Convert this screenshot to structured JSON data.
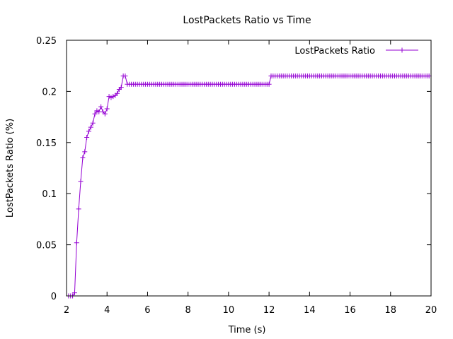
{
  "chart_data": {
    "type": "line",
    "title": "LostPackets Ratio vs Time",
    "xlabel": "Time (s)",
    "ylabel": "LostPackets Ratio (%)",
    "xlim": [
      2,
      20
    ],
    "ylim": [
      0,
      0.25
    ],
    "x_ticks": [
      "2",
      "4",
      "6",
      "8",
      "10",
      "12",
      "14",
      "16",
      "18",
      "20"
    ],
    "y_ticks": [
      "0",
      "0.05",
      "0.1",
      "0.15",
      "0.2",
      "0.25"
    ],
    "grid": false,
    "legend_position": "top-right",
    "colors": {
      "series": "#9400d3",
      "axis": "#000000"
    },
    "series": [
      {
        "name": "LostPackets Ratio",
        "points": [
          [
            2.1,
            0.0
          ],
          [
            2.2,
            0.0
          ],
          [
            2.3,
            0.0
          ],
          [
            2.4,
            0.003
          ],
          [
            2.5,
            0.052
          ],
          [
            2.6,
            0.085
          ],
          [
            2.7,
            0.112
          ],
          [
            2.8,
            0.135
          ],
          [
            2.9,
            0.141
          ],
          [
            3.0,
            0.155
          ],
          [
            3.1,
            0.161
          ],
          [
            3.2,
            0.165
          ],
          [
            3.3,
            0.169
          ],
          [
            3.4,
            0.178
          ],
          [
            3.5,
            0.181
          ],
          [
            3.6,
            0.18
          ],
          [
            3.7,
            0.185
          ],
          [
            3.8,
            0.18
          ],
          [
            3.9,
            0.178
          ],
          [
            4.0,
            0.183
          ],
          [
            4.1,
            0.195
          ],
          [
            4.2,
            0.194
          ],
          [
            4.3,
            0.195
          ],
          [
            4.4,
            0.196
          ],
          [
            4.5,
            0.198
          ],
          [
            4.6,
            0.202
          ],
          [
            4.7,
            0.204
          ],
          [
            4.8,
            0.215
          ],
          [
            4.9,
            0.215
          ],
          [
            5.0,
            0.207
          ],
          [
            5.1,
            0.207
          ],
          [
            5.2,
            0.207
          ],
          [
            5.3,
            0.207
          ],
          [
            5.4,
            0.207
          ],
          [
            5.5,
            0.207
          ],
          [
            5.6,
            0.207
          ],
          [
            5.7,
            0.207
          ],
          [
            5.8,
            0.207
          ],
          [
            5.9,
            0.207
          ],
          [
            6.0,
            0.207
          ],
          [
            6.1,
            0.207
          ],
          [
            6.2,
            0.207
          ],
          [
            6.3,
            0.207
          ],
          [
            6.4,
            0.207
          ],
          [
            6.5,
            0.207
          ],
          [
            6.6,
            0.207
          ],
          [
            6.7,
            0.207
          ],
          [
            6.8,
            0.207
          ],
          [
            6.9,
            0.207
          ],
          [
            7.0,
            0.207
          ],
          [
            7.1,
            0.207
          ],
          [
            7.2,
            0.207
          ],
          [
            7.3,
            0.207
          ],
          [
            7.4,
            0.207
          ],
          [
            7.5,
            0.207
          ],
          [
            7.6,
            0.207
          ],
          [
            7.7,
            0.207
          ],
          [
            7.8,
            0.207
          ],
          [
            7.9,
            0.207
          ],
          [
            8.0,
            0.207
          ],
          [
            8.1,
            0.207
          ],
          [
            8.2,
            0.207
          ],
          [
            8.3,
            0.207
          ],
          [
            8.4,
            0.207
          ],
          [
            8.5,
            0.207
          ],
          [
            8.6,
            0.207
          ],
          [
            8.7,
            0.207
          ],
          [
            8.8,
            0.207
          ],
          [
            8.9,
            0.207
          ],
          [
            9.0,
            0.207
          ],
          [
            9.1,
            0.207
          ],
          [
            9.2,
            0.207
          ],
          [
            9.3,
            0.207
          ],
          [
            9.4,
            0.207
          ],
          [
            9.5,
            0.207
          ],
          [
            9.6,
            0.207
          ],
          [
            9.7,
            0.207
          ],
          [
            9.8,
            0.207
          ],
          [
            9.9,
            0.207
          ],
          [
            10.0,
            0.207
          ],
          [
            10.1,
            0.207
          ],
          [
            10.2,
            0.207
          ],
          [
            10.3,
            0.207
          ],
          [
            10.4,
            0.207
          ],
          [
            10.5,
            0.207
          ],
          [
            10.6,
            0.207
          ],
          [
            10.7,
            0.207
          ],
          [
            10.8,
            0.207
          ],
          [
            10.9,
            0.207
          ],
          [
            11.0,
            0.207
          ],
          [
            11.1,
            0.207
          ],
          [
            11.2,
            0.207
          ],
          [
            11.3,
            0.207
          ],
          [
            11.4,
            0.207
          ],
          [
            11.5,
            0.207
          ],
          [
            11.6,
            0.207
          ],
          [
            11.7,
            0.207
          ],
          [
            11.8,
            0.207
          ],
          [
            11.9,
            0.207
          ],
          [
            12.0,
            0.207
          ],
          [
            12.1,
            0.215
          ],
          [
            12.2,
            0.215
          ],
          [
            12.3,
            0.215
          ],
          [
            12.4,
            0.215
          ],
          [
            12.5,
            0.215
          ],
          [
            12.6,
            0.215
          ],
          [
            12.7,
            0.215
          ],
          [
            12.8,
            0.215
          ],
          [
            12.9,
            0.215
          ],
          [
            13.0,
            0.215
          ],
          [
            13.1,
            0.215
          ],
          [
            13.2,
            0.215
          ],
          [
            13.3,
            0.215
          ],
          [
            13.4,
            0.215
          ],
          [
            13.5,
            0.215
          ],
          [
            13.6,
            0.215
          ],
          [
            13.7,
            0.215
          ],
          [
            13.8,
            0.215
          ],
          [
            13.9,
            0.215
          ],
          [
            14.0,
            0.215
          ],
          [
            14.1,
            0.215
          ],
          [
            14.2,
            0.215
          ],
          [
            14.3,
            0.215
          ],
          [
            14.4,
            0.215
          ],
          [
            14.5,
            0.215
          ],
          [
            14.6,
            0.215
          ],
          [
            14.7,
            0.215
          ],
          [
            14.8,
            0.215
          ],
          [
            14.9,
            0.215
          ],
          [
            15.0,
            0.215
          ],
          [
            15.1,
            0.215
          ],
          [
            15.2,
            0.215
          ],
          [
            15.3,
            0.215
          ],
          [
            15.4,
            0.215
          ],
          [
            15.5,
            0.215
          ],
          [
            15.6,
            0.215
          ],
          [
            15.7,
            0.215
          ],
          [
            15.8,
            0.215
          ],
          [
            15.9,
            0.215
          ],
          [
            16.0,
            0.215
          ],
          [
            16.1,
            0.215
          ],
          [
            16.2,
            0.215
          ],
          [
            16.3,
            0.215
          ],
          [
            16.4,
            0.215
          ],
          [
            16.5,
            0.215
          ],
          [
            16.6,
            0.215
          ],
          [
            16.7,
            0.215
          ],
          [
            16.8,
            0.215
          ],
          [
            16.9,
            0.215
          ],
          [
            17.0,
            0.215
          ],
          [
            17.1,
            0.215
          ],
          [
            17.2,
            0.215
          ],
          [
            17.3,
            0.215
          ],
          [
            17.4,
            0.215
          ],
          [
            17.5,
            0.215
          ],
          [
            17.6,
            0.215
          ],
          [
            17.7,
            0.215
          ],
          [
            17.8,
            0.215
          ],
          [
            17.9,
            0.215
          ],
          [
            18.0,
            0.215
          ],
          [
            18.1,
            0.215
          ],
          [
            18.2,
            0.215
          ],
          [
            18.3,
            0.215
          ],
          [
            18.4,
            0.215
          ],
          [
            18.5,
            0.215
          ],
          [
            18.6,
            0.215
          ],
          [
            18.7,
            0.215
          ],
          [
            18.8,
            0.215
          ],
          [
            18.9,
            0.215
          ],
          [
            19.0,
            0.215
          ],
          [
            19.1,
            0.215
          ],
          [
            19.2,
            0.215
          ],
          [
            19.3,
            0.215
          ],
          [
            19.4,
            0.215
          ],
          [
            19.5,
            0.215
          ],
          [
            19.6,
            0.215
          ],
          [
            19.7,
            0.215
          ],
          [
            19.8,
            0.215
          ],
          [
            19.9,
            0.215
          ]
        ]
      }
    ]
  }
}
